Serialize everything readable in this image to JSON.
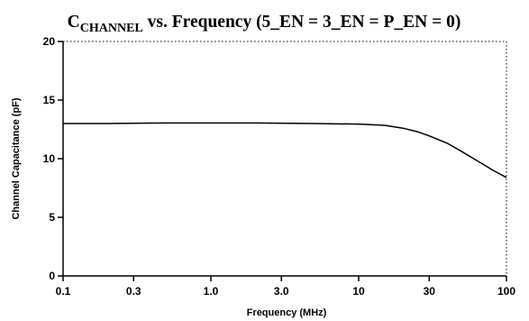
{
  "chart_data": {
    "type": "line",
    "title": {
      "prefix": "C",
      "subscript": "CHANNEL",
      "suffix": " vs. Frequency (5_EN = 3_EN = P_EN = 0)"
    },
    "xlabel": "Frequency (MHz)",
    "ylabel": "Channel Capacitance (pF)",
    "x_scale": "log",
    "xlim": [
      0.1,
      100
    ],
    "ylim": [
      0,
      20
    ],
    "x_ticks": [
      {
        "value": 0.1,
        "label": "0.1"
      },
      {
        "value": 0.3,
        "label": "0.3"
      },
      {
        "value": 1.0,
        "label": "1.0"
      },
      {
        "value": 3.0,
        "label": "3.0"
      },
      {
        "value": 10,
        "label": "10"
      },
      {
        "value": 30,
        "label": "30"
      },
      {
        "value": 100,
        "label": "100"
      }
    ],
    "y_ticks": [
      {
        "value": 0,
        "label": "0"
      },
      {
        "value": 5,
        "label": "5"
      },
      {
        "value": 10,
        "label": "10"
      },
      {
        "value": 15,
        "label": "15"
      },
      {
        "value": 20,
        "label": "20"
      }
    ],
    "grid": false,
    "frame_style": "dotted top and right border",
    "series": [
      {
        "color": "#000000",
        "x": [
          0.1,
          0.2,
          0.5,
          1,
          2,
          5,
          10,
          15,
          20,
          25,
          30,
          40,
          50,
          60,
          70,
          80,
          90,
          100
        ],
        "y": [
          13.0,
          13.0,
          13.05,
          13.05,
          13.05,
          13.0,
          12.95,
          12.85,
          12.6,
          12.3,
          11.95,
          11.3,
          10.6,
          10.0,
          9.5,
          9.05,
          8.7,
          8.4
        ]
      }
    ]
  }
}
